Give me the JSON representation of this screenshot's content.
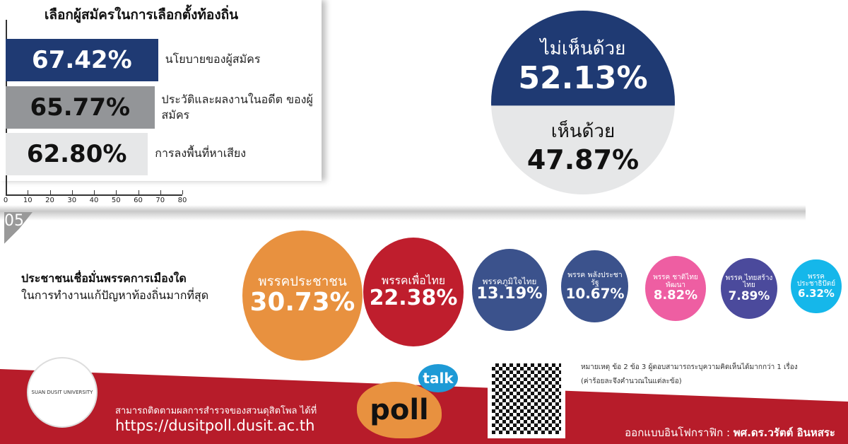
{
  "chart_data": [
    {
      "type": "bar",
      "orientation": "horizontal",
      "title": "เลือกผู้สมัครในการเลือกตั้งท้องถิ่น",
      "categories": [
        "นโยบายของผู้สมัคร",
        "ประวัติและผลงานในอดีต ของผู้สมัคร",
        "การลงพื้นที่หาเสียง"
      ],
      "values": [
        67.42,
        65.77,
        62.8
      ],
      "labels": [
        "67.42%",
        "65.77%",
        "62.80%"
      ],
      "colors": [
        "#1f3a73",
        "#939598",
        "#e6e7e8"
      ],
      "xlim": [
        0,
        80
      ],
      "xticks": [
        "0",
        "10",
        "20",
        "30",
        "40",
        "50",
        "60",
        "70",
        "80"
      ]
    },
    {
      "type": "pie",
      "slices": [
        {
          "label": "ไม่เห็นด้วย",
          "value": 52.13,
          "text": "52.13%",
          "color": "#1f3a73"
        },
        {
          "label": "เห็นด้วย",
          "value": 47.87,
          "text": "47.87%",
          "color": "#e6e7e8"
        }
      ]
    },
    {
      "type": "bubble",
      "section": "05",
      "title": "ประชาชนเชื่อมั่นพรรคการเมืองใด",
      "subtitle": "ในการทำงานแก้ปัญหาท้องถิ่นมากที่สุด",
      "items": [
        {
          "label": "พรรคประชาชน",
          "value": 30.73,
          "text": "30.73%",
          "color": "#e8913f"
        },
        {
          "label": "พรรคเพื่อไทย",
          "value": 22.38,
          "text": "22.38%",
          "color": "#bf1e2d"
        },
        {
          "label": "พรรคภูมิใจไทย",
          "value": 13.19,
          "text": "13.19%",
          "color": "#3b528c"
        },
        {
          "label": "พรรค พลังประชารัฐ",
          "value": 10.67,
          "text": "10.67%",
          "color": "#3b528c"
        },
        {
          "label": "พรรค ชาติไทยพัฒนา",
          "value": 8.82,
          "text": "8.82%",
          "color": "#ee5ea2"
        },
        {
          "label": "พรรค ไทยสร้างไทย",
          "value": 7.89,
          "text": "7.89%",
          "color": "#4b4a9c"
        },
        {
          "label": "พรรค ประชาธิปัตย์",
          "value": 6.32,
          "text": "6.32%",
          "color": "#15b7ea"
        }
      ]
    }
  ],
  "footer": {
    "follow_text": "สามารถติดตามผลการสำรวจของสวนดุสิตโพล ได้ที่",
    "url": "https://dusitpoll.dusit.ac.th",
    "note1": "หมายเหตุ  ข้อ 2 ข้อ 3 ผู้ตอบสามารถระบุความคิดเห็นได้มากกว่า 1 เรื่อง",
    "note2": "(ค่าร้อยละจึงคำนวณในแต่ละข้อ)",
    "credit_label": "ออกแบบอินโฟกราฟิก : ",
    "credit_name": "พศ.ดร.วรัตต์ อินหสระ",
    "logo_text": "SUAN DUSIT UNIVERSITY",
    "poll_logo": "poll",
    "talk_logo": "talk",
    "accent": "#b71c2a"
  }
}
